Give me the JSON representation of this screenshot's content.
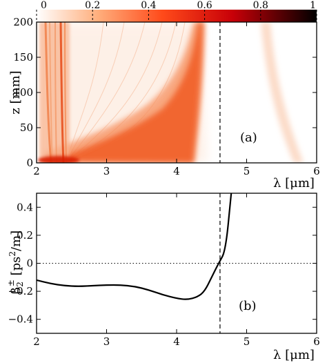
{
  "chart_data": [
    {
      "type": "heatmap",
      "panel_label": "(a)",
      "xlabel": "λ [μm]",
      "ylabel": "z [mm]",
      "xlim": [
        2,
        6
      ],
      "ylim": [
        0,
        200
      ],
      "xticks": [
        2,
        3,
        4,
        5,
        6
      ],
      "yticks": [
        0,
        50,
        100,
        150,
        200
      ],
      "colorbar": {
        "range": [
          0,
          1
        ],
        "ticks": [
          "0",
          "0.2",
          "0.4",
          "0.6",
          "0.8",
          "1"
        ],
        "placement": "top",
        "colors": [
          "#ffffff",
          "#ff9a5a",
          "#ff3a12",
          "#c00000",
          "#000000"
        ]
      },
      "zero_dispersion_wavelength": 4.62,
      "features": [
        {
          "name": "pump band",
          "x_range": [
            2.02,
            2.32
          ],
          "z_range": [
            0,
            200
          ]
        },
        {
          "name": "soliton branch",
          "x_path": [
            [
              2.05,
              3
            ],
            [
              3.0,
              20
            ],
            [
              3.6,
              45
            ],
            [
              3.95,
              80
            ],
            [
              4.15,
              120
            ],
            [
              4.25,
              160
            ],
            [
              4.3,
              200
            ]
          ]
        },
        {
          "name": "dispersive wave",
          "x_path": [
            [
              5.4,
              0
            ],
            [
              5.25,
              60
            ],
            [
              5.15,
              120
            ],
            [
              5.1,
              200
            ]
          ]
        }
      ]
    },
    {
      "type": "line",
      "panel_label": "(b)",
      "xlabel": "λ [μm]",
      "ylabel_main": "β",
      "ylabel_sub": "2",
      "ylabel_sup": "±",
      "ylabel_unit_pre": " [ps",
      "ylabel_unit_sup": "2",
      "ylabel_unit_post": "/m]",
      "xlim": [
        2,
        6
      ],
      "ylim": [
        -0.5,
        0.5
      ],
      "xticks": [
        2,
        3,
        4,
        5,
        6
      ],
      "yticks": [
        -0.4,
        -0.2,
        0,
        0.2,
        0.4
      ],
      "ytick_labels": [
        "−0.4",
        "−0.2",
        "0",
        "0.2",
        "0.4"
      ],
      "zero_dispersion_wavelength": 4.62,
      "series": [
        {
          "x": [
            2.0,
            2.2,
            2.4,
            2.6,
            2.8,
            3.0,
            3.2,
            3.4,
            3.6,
            3.8,
            4.0,
            4.15,
            4.3,
            4.4,
            4.5,
            4.6,
            4.7,
            4.78
          ],
          "y": [
            -0.12,
            -0.145,
            -0.16,
            -0.165,
            -0.16,
            -0.155,
            -0.155,
            -0.165,
            -0.19,
            -0.225,
            -0.25,
            -0.26,
            -0.24,
            -0.2,
            -0.1,
            0.0,
            0.09,
            0.5
          ]
        }
      ]
    }
  ]
}
